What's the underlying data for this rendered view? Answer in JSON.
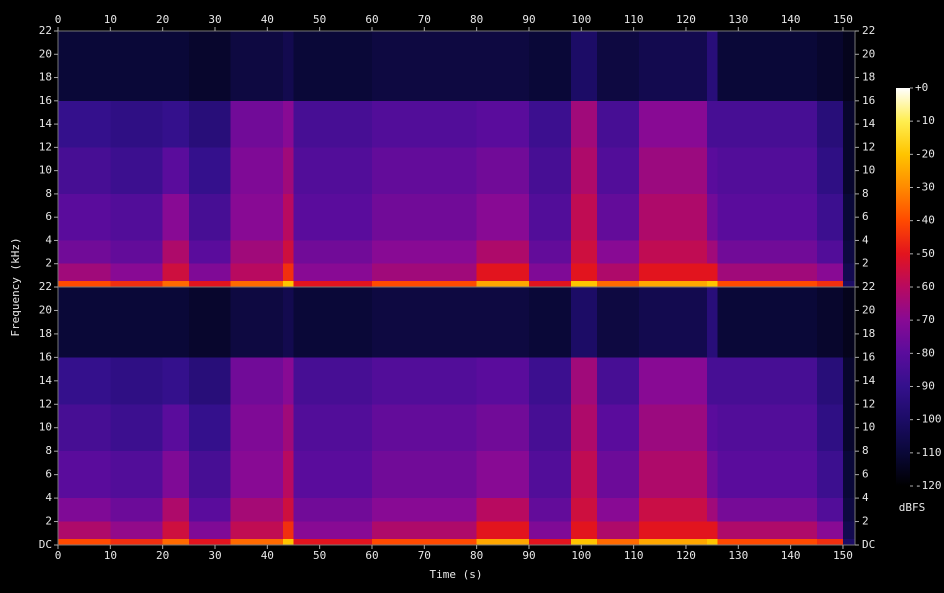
{
  "chart_data": {
    "type": "spectrogram",
    "x_label": "Time (s)",
    "y_label": "Frequency (kHz)",
    "colorbar_label": "dBFS",
    "xlim": [
      0,
      152.3
    ],
    "xticks": [
      0,
      10,
      20,
      30,
      40,
      50,
      60,
      70,
      80,
      90,
      100,
      110,
      120,
      130,
      140,
      150
    ],
    "xbins": [
      0,
      10,
      20,
      25,
      33,
      43,
      45,
      60,
      80,
      90,
      98,
      103,
      111,
      124,
      126,
      145,
      150,
      152.3
    ],
    "ybins": [
      0,
      0.5,
      2,
      4,
      8,
      12,
      16,
      22
    ],
    "zlim": [
      -120,
      0
    ],
    "zticks": [
      {
        "value": 0,
        "label": "+0"
      },
      -10,
      -20,
      -30,
      -40,
      -50,
      -60,
      -70,
      -80,
      -90,
      -100,
      -110,
      -120
    ],
    "colormap": [
      "#000000",
      "#0a0838",
      "#1c0c66",
      "#34108c",
      "#5a0c9c",
      "#880a94",
      "#b80a60",
      "#e2141e",
      "#ff4a00",
      "#ff8a00",
      "#ffc400",
      "#ffee50",
      "#ffffff"
    ],
    "channels": [
      {
        "ylim": [
          0,
          22
        ],
        "yticks": [
          2,
          4,
          6,
          8,
          10,
          12,
          14,
          16,
          18,
          20,
          22
        ],
        "values": [
          [
            -40,
            -45,
            -35,
            -50,
            -35,
            -20,
            -50,
            -40,
            -25,
            -50,
            -20,
            -35,
            -25,
            -20,
            -40,
            -45,
            -100
          ],
          [
            -65,
            -70,
            -55,
            -72,
            -60,
            -45,
            -70,
            -65,
            -50,
            -72,
            -50,
            -62,
            -50,
            -50,
            -65,
            -70,
            -105
          ],
          [
            -75,
            -78,
            -62,
            -80,
            -65,
            -55,
            -75,
            -70,
            -62,
            -78,
            -55,
            -70,
            -58,
            -65,
            -75,
            -82,
            -108
          ],
          [
            -80,
            -82,
            -70,
            -85,
            -70,
            -60,
            -80,
            -75,
            -70,
            -82,
            -58,
            -78,
            -62,
            -75,
            -80,
            -88,
            -110
          ],
          [
            -85,
            -88,
            -80,
            -90,
            -72,
            -65,
            -82,
            -78,
            -75,
            -85,
            -62,
            -82,
            -66,
            -80,
            -82,
            -92,
            -112
          ],
          [
            -90,
            -92,
            -90,
            -95,
            -75,
            -70,
            -85,
            -82,
            -80,
            -88,
            -65,
            -85,
            -70,
            -85,
            -85,
            -95,
            -112
          ],
          [
            -110,
            -110,
            -110,
            -112,
            -108,
            -105,
            -110,
            -108,
            -108,
            -110,
            -100,
            -108,
            -105,
            -95,
            -110,
            -112,
            -115
          ]
        ]
      },
      {
        "ylim": [
          0,
          22
        ],
        "yticks": [
          {
            "value": 0,
            "label": "DC"
          },
          2,
          4,
          6,
          8,
          10,
          12,
          14,
          16,
          18,
          20,
          22
        ],
        "values": [
          [
            -40,
            -45,
            -35,
            -50,
            -35,
            -20,
            -50,
            -40,
            -25,
            -50,
            -20,
            -35,
            -25,
            -20,
            -40,
            -45,
            -100
          ],
          [
            -62,
            -68,
            -55,
            -72,
            -58,
            -45,
            -70,
            -62,
            -50,
            -72,
            -50,
            -62,
            -50,
            -50,
            -62,
            -70,
            -105
          ],
          [
            -72,
            -76,
            -62,
            -80,
            -64,
            -55,
            -75,
            -70,
            -60,
            -78,
            -55,
            -70,
            -56,
            -65,
            -74,
            -82,
            -108
          ],
          [
            -80,
            -82,
            -72,
            -85,
            -70,
            -60,
            -80,
            -75,
            -70,
            -82,
            -58,
            -76,
            -62,
            -75,
            -80,
            -88,
            -110
          ],
          [
            -85,
            -88,
            -80,
            -90,
            -72,
            -65,
            -82,
            -78,
            -75,
            -85,
            -62,
            -80,
            -66,
            -80,
            -82,
            -92,
            -112
          ],
          [
            -90,
            -92,
            -90,
            -95,
            -75,
            -70,
            -85,
            -82,
            -80,
            -88,
            -65,
            -85,
            -70,
            -85,
            -85,
            -95,
            -112
          ],
          [
            -110,
            -110,
            -110,
            -112,
            -108,
            -105,
            -110,
            -108,
            -108,
            -110,
            -100,
            -108,
            -105,
            -95,
            -110,
            -112,
            -115
          ]
        ]
      }
    ]
  }
}
